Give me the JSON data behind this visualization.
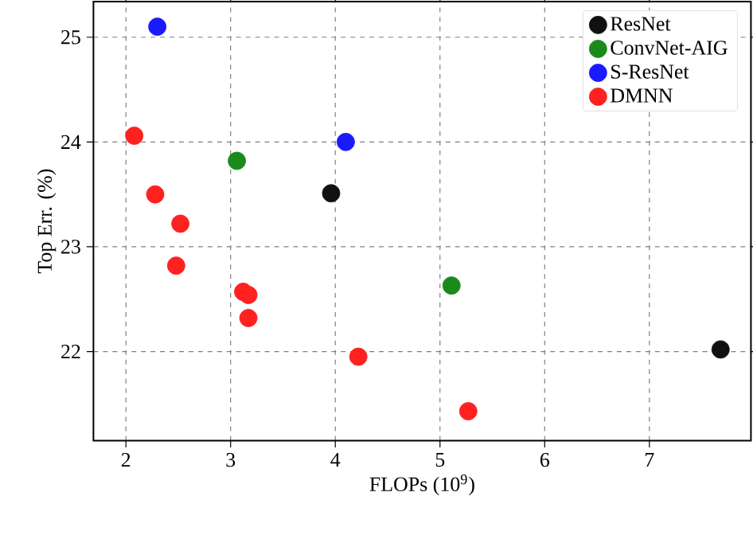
{
  "chart_data": {
    "type": "scatter",
    "xlabel": "FLOPs (10$^{9}$)",
    "ylabel": "Top Err. (%)",
    "xlim": [
      1.69,
      7.97
    ],
    "ylim": [
      21.15,
      25.34
    ],
    "xticks": [
      2,
      3,
      4,
      5,
      6,
      7
    ],
    "yticks": [
      22,
      23,
      24,
      25
    ],
    "grid": true,
    "legend": "top right",
    "series": [
      {
        "name": "ResNet",
        "color": "#111111",
        "x": [
          3.96,
          7.68
        ],
        "values": [
          23.51,
          22.02
        ]
      },
      {
        "name": "ConvNet-AIG",
        "color": "#1a8a1a",
        "x": [
          3.06,
          5.11
        ],
        "values": [
          23.82,
          22.63
        ]
      },
      {
        "name": "S-ResNet",
        "color": "#1a1aff",
        "x": [
          2.3,
          4.1
        ],
        "values": [
          25.1,
          24.0
        ]
      },
      {
        "name": "DMNN",
        "color": "#ff2020",
        "x": [
          2.08,
          2.28,
          2.52,
          2.48,
          3.12,
          3.17,
          3.17,
          4.22,
          5.27
        ],
        "values": [
          24.06,
          23.5,
          23.22,
          22.82,
          22.57,
          22.54,
          22.32,
          21.95,
          21.43
        ]
      }
    ]
  }
}
